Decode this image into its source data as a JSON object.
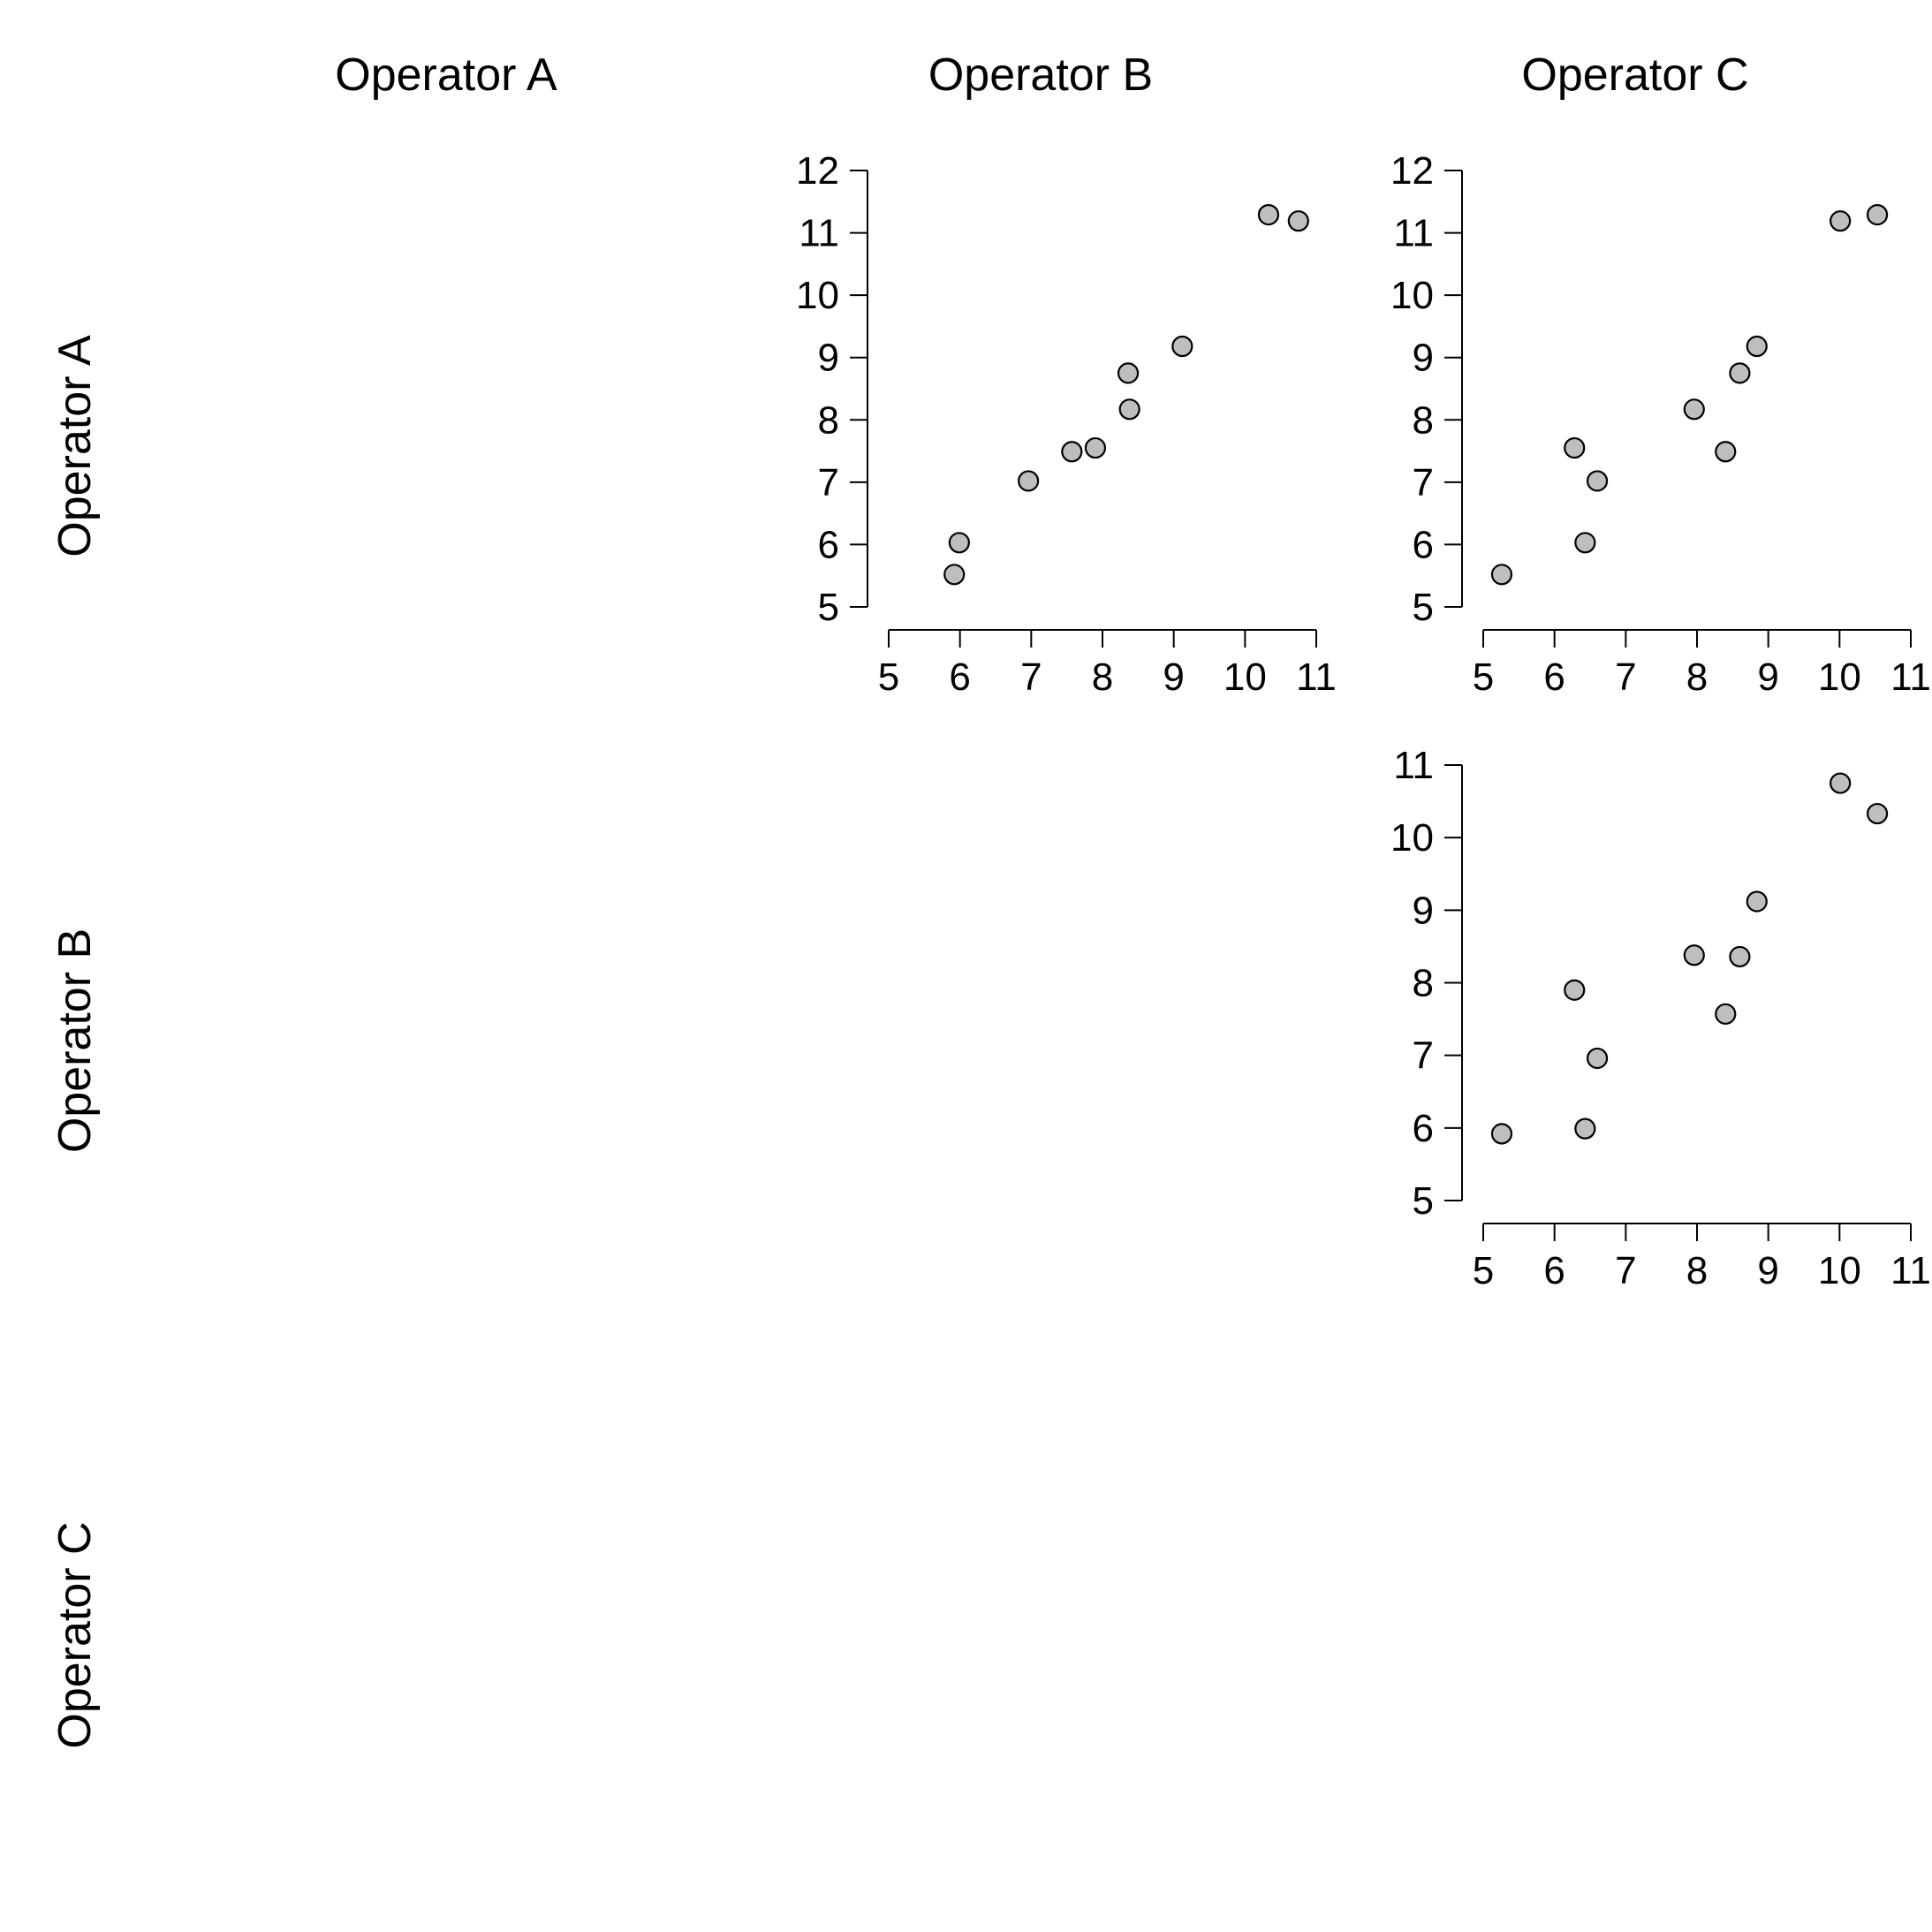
{
  "colors": {
    "point_fill": "#bebebe",
    "point_stroke": "#000000",
    "axis": "#000000",
    "background": "#ffffff"
  },
  "operators": [
    "Operator A",
    "Operator B",
    "Operator C"
  ],
  "chart_data": [
    {
      "type": "scatter",
      "row": "Operator A",
      "col": "Operator B",
      "xlim": [
        5,
        11
      ],
      "ylim": [
        5,
        12
      ],
      "xticks": [
        "5",
        "6",
        "7",
        "8",
        "9",
        "10",
        "11"
      ],
      "yticks": [
        "5",
        "6",
        "7",
        "8",
        "9",
        "10",
        "11",
        "12"
      ],
      "grid": false,
      "points": [
        {
          "x": 5.92,
          "y": 5.52
        },
        {
          "x": 5.99,
          "y": 6.03
        },
        {
          "x": 6.96,
          "y": 7.02
        },
        {
          "x": 7.57,
          "y": 7.49
        },
        {
          "x": 7.9,
          "y": 7.55
        },
        {
          "x": 8.36,
          "y": 8.75
        },
        {
          "x": 8.38,
          "y": 8.17
        },
        {
          "x": 9.12,
          "y": 9.18
        },
        {
          "x": 10.33,
          "y": 11.29
        },
        {
          "x": 10.75,
          "y": 11.19
        }
      ]
    },
    {
      "type": "scatter",
      "row": "Operator A",
      "col": "Operator C",
      "xlim": [
        5,
        11
      ],
      "ylim": [
        5,
        12
      ],
      "xticks": [
        "5",
        "6",
        "7",
        "8",
        "9",
        "10",
        "11"
      ],
      "yticks": [
        "5",
        "6",
        "7",
        "8",
        "9",
        "10",
        "11",
        "12"
      ],
      "grid": false,
      "points": [
        {
          "x": 5.26,
          "y": 5.52
        },
        {
          "x": 6.28,
          "y": 7.55
        },
        {
          "x": 6.43,
          "y": 6.03
        },
        {
          "x": 6.6,
          "y": 7.02
        },
        {
          "x": 7.96,
          "y": 8.17
        },
        {
          "x": 8.4,
          "y": 7.49
        },
        {
          "x": 8.6,
          "y": 8.75
        },
        {
          "x": 8.84,
          "y": 9.18
        },
        {
          "x": 10.01,
          "y": 11.19
        },
        {
          "x": 10.53,
          "y": 11.29
        }
      ]
    },
    {
      "type": "scatter",
      "row": "Operator B",
      "col": "Operator C",
      "xlim": [
        5,
        11
      ],
      "ylim": [
        5,
        11
      ],
      "xticks": [
        "5",
        "6",
        "7",
        "8",
        "9",
        "10",
        "11"
      ],
      "yticks": [
        "5",
        "6",
        "7",
        "8",
        "9",
        "10",
        "11"
      ],
      "grid": false,
      "points": [
        {
          "x": 5.26,
          "y": 5.92
        },
        {
          "x": 6.28,
          "y": 7.9
        },
        {
          "x": 6.43,
          "y": 5.99
        },
        {
          "x": 6.6,
          "y": 6.96
        },
        {
          "x": 7.96,
          "y": 8.38
        },
        {
          "x": 8.4,
          "y": 7.57
        },
        {
          "x": 8.6,
          "y": 8.36
        },
        {
          "x": 8.84,
          "y": 9.12
        },
        {
          "x": 10.01,
          "y": 10.75
        },
        {
          "x": 10.53,
          "y": 10.33
        }
      ]
    }
  ]
}
